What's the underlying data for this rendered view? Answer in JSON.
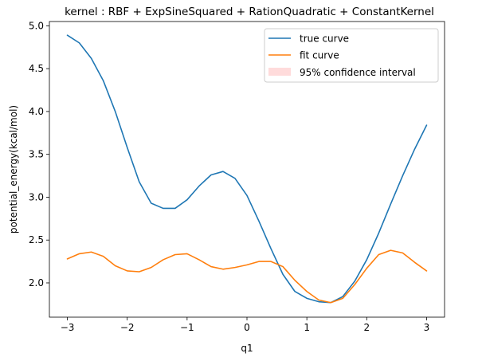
{
  "chart_data": {
    "type": "line",
    "title": "kernel : RBF + ExpSineSquared + RationQuadratic + ConstantKernel",
    "xlabel": "q1",
    "ylabel": "potential_energy(kcal/mol)",
    "xlim": [
      -3.3,
      3.3
    ],
    "ylim": [
      1.6,
      5.05
    ],
    "xticks": [
      -3,
      -2,
      -1,
      0,
      1,
      2,
      3
    ],
    "xtick_labels": [
      "−3",
      "−2",
      "−1",
      "0",
      "1",
      "2",
      "3"
    ],
    "yticks": [
      2.0,
      2.5,
      3.0,
      3.5,
      4.0,
      4.5,
      5.0
    ],
    "ytick_labels": [
      "2.0",
      "2.5",
      "3.0",
      "3.5",
      "4.0",
      "4.5",
      "5.0"
    ],
    "grid": false,
    "legend_position": "top-right",
    "series": [
      {
        "name": "true curve",
        "color": "#1f77b4",
        "x": [
          -3.0,
          -2.8,
          -2.6,
          -2.4,
          -2.2,
          -2.0,
          -1.8,
          -1.6,
          -1.4,
          -1.2,
          -1.0,
          -0.8,
          -0.6,
          -0.4,
          -0.2,
          0.0,
          0.2,
          0.4,
          0.6,
          0.8,
          1.0,
          1.2,
          1.4,
          1.6,
          1.8,
          2.0,
          2.2,
          2.4,
          2.6,
          2.8,
          3.0
        ],
        "y": [
          4.89,
          4.8,
          4.62,
          4.36,
          4.0,
          3.58,
          3.18,
          2.93,
          2.87,
          2.87,
          2.97,
          3.13,
          3.26,
          3.3,
          3.22,
          3.02,
          2.72,
          2.4,
          2.1,
          1.9,
          1.82,
          1.78,
          1.77,
          1.84,
          2.02,
          2.27,
          2.58,
          2.92,
          3.25,
          3.56,
          3.84
        ]
      },
      {
        "name": "fit curve",
        "color": "#ff7f0e",
        "x": [
          -3.0,
          -2.8,
          -2.6,
          -2.4,
          -2.2,
          -2.0,
          -1.8,
          -1.6,
          -1.4,
          -1.2,
          -1.0,
          -0.8,
          -0.6,
          -0.4,
          -0.2,
          0.0,
          0.2,
          0.4,
          0.6,
          0.8,
          1.0,
          1.2,
          1.4,
          1.6,
          1.8,
          2.0,
          2.2,
          2.4,
          2.6,
          2.8,
          3.0
        ],
        "y": [
          2.28,
          2.34,
          2.36,
          2.31,
          2.2,
          2.14,
          2.13,
          2.18,
          2.27,
          2.33,
          2.34,
          2.27,
          2.19,
          2.16,
          2.18,
          2.21,
          2.25,
          2.25,
          2.19,
          2.03,
          1.9,
          1.8,
          1.77,
          1.82,
          1.98,
          2.17,
          2.33,
          2.38,
          2.35,
          2.24,
          2.14
        ]
      }
    ],
    "confidence_band": {
      "name": "95% confidence interval",
      "color": "#ffcccc",
      "edge_color": "#e8a0a0"
    }
  }
}
